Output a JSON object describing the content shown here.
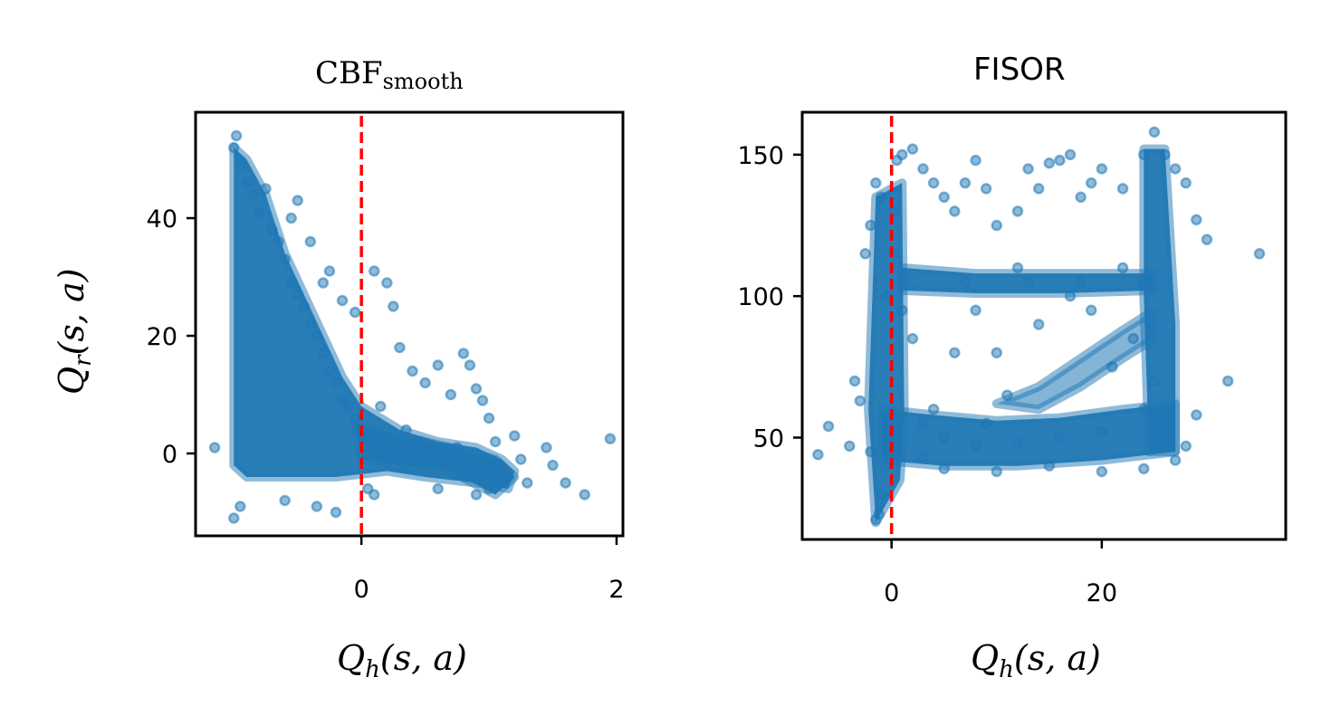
{
  "chart_data": [
    {
      "type": "scatter",
      "title": "CBF",
      "title_subscript": "smooth",
      "xlabel": "Q",
      "xlabel_subscript": "h",
      "xlabel_suffix": "(s, a)",
      "ylabel": "Q",
      "ylabel_subscript": "r",
      "ylabel_suffix": "(s, a)",
      "xlim": [
        -1.3,
        2.05
      ],
      "ylim": [
        -14,
        58
      ],
      "xticks": [
        0,
        2
      ],
      "yticks": [
        0,
        20,
        40
      ],
      "reference_line": {
        "axis": "x",
        "value": 0,
        "color": "#ff0000",
        "style": "dashed"
      },
      "marker_color": "#1f77b4",
      "grid": false,
      "points": [
        [
          -1.0,
          52
        ],
        [
          -0.98,
          54
        ],
        [
          -0.95,
          49
        ],
        [
          -0.9,
          46
        ],
        [
          -0.85,
          44
        ],
        [
          -0.8,
          41
        ],
        [
          -0.75,
          45
        ],
        [
          -0.7,
          38
        ],
        [
          -0.65,
          36
        ],
        [
          -0.6,
          33
        ],
        [
          -0.55,
          29
        ],
        [
          -0.5,
          27
        ],
        [
          -0.45,
          25
        ],
        [
          -0.4,
          22
        ],
        [
          -0.35,
          20
        ],
        [
          -0.3,
          17
        ],
        [
          -0.25,
          14
        ],
        [
          -0.2,
          12
        ],
        [
          -0.15,
          9
        ],
        [
          -0.1,
          8
        ],
        [
          -0.05,
          6
        ],
        [
          0.0,
          4
        ],
        [
          0.05,
          3
        ],
        [
          0.1,
          31
        ],
        [
          0.2,
          29
        ],
        [
          0.25,
          25
        ],
        [
          0.3,
          18
        ],
        [
          0.4,
          14
        ],
        [
          0.5,
          12
        ],
        [
          0.6,
          15
        ],
        [
          0.7,
          10
        ],
        [
          0.8,
          17
        ],
        [
          0.85,
          15
        ],
        [
          0.9,
          11
        ],
        [
          0.95,
          9
        ],
        [
          1.0,
          6
        ],
        [
          1.05,
          2
        ],
        [
          1.1,
          -3
        ],
        [
          1.2,
          3
        ],
        [
          1.3,
          -5
        ],
        [
          1.45,
          1
        ],
        [
          1.5,
          -2
        ],
        [
          1.6,
          -5
        ],
        [
          1.75,
          -7
        ],
        [
          1.95,
          2.5
        ],
        [
          -1.15,
          1
        ],
        [
          -1.0,
          -11
        ],
        [
          -0.95,
          -9
        ],
        [
          -0.6,
          -8
        ],
        [
          -0.35,
          -9
        ],
        [
          -0.2,
          -10
        ],
        [
          0.05,
          -6
        ],
        [
          0.1,
          -7
        ],
        [
          0.6,
          -6
        ],
        [
          0.9,
          -7
        ],
        [
          1.0,
          -6
        ],
        [
          -0.5,
          43
        ],
        [
          -0.55,
          40
        ],
        [
          -0.4,
          36
        ],
        [
          -0.3,
          29
        ],
        [
          -0.25,
          31
        ],
        [
          -0.15,
          26
        ],
        [
          -0.05,
          24
        ],
        [
          0.15,
          8
        ],
        [
          0.35,
          4
        ],
        [
          0.45,
          2
        ],
        [
          0.55,
          0
        ],
        [
          0.65,
          -1
        ],
        [
          0.75,
          1
        ],
        [
          0.85,
          -2
        ],
        [
          1.15,
          -4
        ],
        [
          1.25,
          -1
        ]
      ]
    },
    {
      "type": "scatter",
      "title": "FISOR",
      "xlabel": "Q",
      "xlabel_subscript": "h",
      "xlabel_suffix": "(s, a)",
      "xlim": [
        -8.5,
        37.5
      ],
      "ylim": [
        14,
        165
      ],
      "xticks": [
        0,
        20
      ],
      "yticks": [
        50,
        100,
        150
      ],
      "reference_line": {
        "axis": "x",
        "value": 0,
        "color": "#ff0000",
        "style": "dashed"
      },
      "marker_color": "#1f77b4",
      "grid": false,
      "points": [
        [
          -1.5,
          21
        ],
        [
          -1.2,
          23
        ],
        [
          -1.0,
          30
        ],
        [
          -0.5,
          40
        ],
        [
          -2,
          45
        ],
        [
          -4,
          47
        ],
        [
          -6,
          54
        ],
        [
          -7,
          44
        ],
        [
          -3.5,
          70
        ],
        [
          -3,
          63
        ],
        [
          -2.5,
          115
        ],
        [
          -2,
          125
        ],
        [
          -1.5,
          140
        ],
        [
          -1,
          135
        ],
        [
          0.5,
          148
        ],
        [
          1,
          150
        ],
        [
          2,
          152
        ],
        [
          3,
          145
        ],
        [
          4,
          140
        ],
        [
          5,
          135
        ],
        [
          6,
          130
        ],
        [
          7,
          140
        ],
        [
          8,
          148
        ],
        [
          9,
          138
        ],
        [
          10,
          125
        ],
        [
          12,
          130
        ],
        [
          13,
          145
        ],
        [
          14,
          138
        ],
        [
          15,
          147
        ],
        [
          17,
          150
        ],
        [
          19,
          140
        ],
        [
          20,
          145
        ],
        [
          22,
          138
        ],
        [
          24,
          150
        ],
        [
          25,
          158
        ],
        [
          26,
          150
        ],
        [
          27,
          145
        ],
        [
          28,
          140
        ],
        [
          29,
          127
        ],
        [
          30,
          120
        ],
        [
          35,
          115
        ],
        [
          32,
          70
        ],
        [
          29,
          58
        ],
        [
          28,
          47
        ],
        [
          27,
          42
        ],
        [
          24,
          39
        ],
        [
          20,
          38
        ],
        [
          15,
          40
        ],
        [
          10,
          38
        ],
        [
          5,
          39
        ],
        [
          3,
          43
        ],
        [
          18,
          135
        ],
        [
          16,
          148
        ],
        [
          22,
          110
        ],
        [
          12,
          110
        ],
        [
          8,
          95
        ],
        [
          6,
          80
        ],
        [
          10,
          80
        ],
        [
          14,
          90
        ],
        [
          19,
          95
        ],
        [
          21,
          75
        ],
        [
          23,
          85
        ],
        [
          17,
          100
        ],
        [
          11,
          65
        ],
        [
          9,
          55
        ],
        [
          4,
          60
        ],
        [
          2,
          85
        ],
        [
          1,
          95
        ],
        [
          -0.5,
          100
        ],
        [
          0.2,
          115
        ],
        [
          0.3,
          130
        ],
        [
          7,
          105
        ],
        [
          13,
          105
        ],
        [
          18,
          105
        ],
        [
          24,
          104
        ],
        [
          26,
          55
        ],
        [
          25,
          70
        ],
        [
          24,
          60
        ],
        [
          20,
          52
        ],
        [
          16,
          50
        ],
        [
          12,
          48
        ],
        [
          8,
          47
        ],
        [
          5,
          50
        ],
        [
          3,
          55
        ]
      ]
    }
  ]
}
